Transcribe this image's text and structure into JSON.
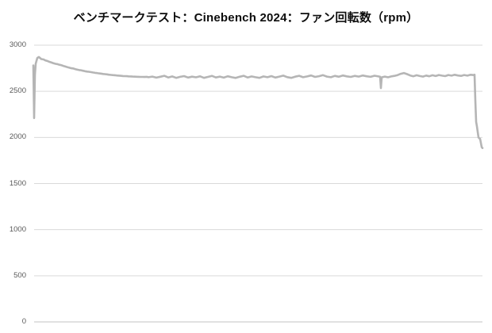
{
  "title": "ベンチマークテスト：Cinebench 2024：ファン回転数（rpm）",
  "colors": {
    "title_text": "#0d0d0d",
    "axis_text": "#595959",
    "gridline": "#d9d9d9",
    "baseline": "#c3c3c3",
    "line": "#b5b5b5",
    "background": "#ffffff"
  },
  "chart_data": {
    "type": "line",
    "title": "ベンチマークテスト：Cinebench 2024：ファン回転数（rpm）",
    "xlabel": "",
    "ylabel": "",
    "legend": "none",
    "grid": "horizontal",
    "x_axis": {
      "tick_labels_visible": false
    },
    "y_axis": {
      "min": 0,
      "max": 3000,
      "ticks": [
        3000,
        2500,
        2000,
        1500,
        1000,
        500,
        0
      ]
    },
    "series": [
      {
        "name": "ファン回転数（rpm）",
        "color": "#b5b5b5",
        "stroke_width": 2.6,
        "points": [
          [
            0,
            2780
          ],
          [
            1,
            2210
          ],
          [
            2,
            2680
          ],
          [
            3,
            2800
          ],
          [
            5,
            2862
          ],
          [
            7,
            2872
          ],
          [
            10,
            2850
          ],
          [
            13,
            2845
          ],
          [
            15,
            2836
          ],
          [
            18,
            2828
          ],
          [
            20,
            2820
          ],
          [
            23,
            2812
          ],
          [
            25,
            2806
          ],
          [
            28,
            2798
          ],
          [
            30,
            2795
          ],
          [
            33,
            2788
          ],
          [
            35,
            2784
          ],
          [
            38,
            2775
          ],
          [
            40,
            2770
          ],
          [
            43,
            2762
          ],
          [
            45,
            2758
          ],
          [
            48,
            2750
          ],
          [
            50,
            2748
          ],
          [
            53,
            2740
          ],
          [
            55,
            2736
          ],
          [
            58,
            2730
          ],
          [
            60,
            2728
          ],
          [
            63,
            2722
          ],
          [
            65,
            2718
          ],
          [
            68,
            2714
          ],
          [
            70,
            2712
          ],
          [
            73,
            2708
          ],
          [
            75,
            2704
          ],
          [
            78,
            2700
          ],
          [
            80,
            2698
          ],
          [
            83,
            2694
          ],
          [
            85,
            2692
          ],
          [
            88,
            2688
          ],
          [
            90,
            2686
          ],
          [
            93,
            2684
          ],
          [
            95,
            2680
          ],
          [
            98,
            2678
          ],
          [
            100,
            2676
          ],
          [
            103,
            2674
          ],
          [
            105,
            2672
          ],
          [
            108,
            2670
          ],
          [
            110,
            2668
          ],
          [
            113,
            2666
          ],
          [
            115,
            2665
          ],
          [
            118,
            2664
          ],
          [
            120,
            2662
          ],
          [
            123,
            2661
          ],
          [
            125,
            2660
          ],
          [
            128,
            2659
          ],
          [
            130,
            2658
          ],
          [
            133,
            2657
          ],
          [
            135,
            2656
          ],
          [
            138,
            2656
          ],
          [
            140,
            2655
          ],
          [
            143,
            2657
          ],
          [
            145,
            2653
          ],
          [
            150,
            2660
          ],
          [
            155,
            2648
          ],
          [
            160,
            2658
          ],
          [
            165,
            2668
          ],
          [
            170,
            2650
          ],
          [
            175,
            2661
          ],
          [
            180,
            2646
          ],
          [
            185,
            2657
          ],
          [
            190,
            2665
          ],
          [
            195,
            2649
          ],
          [
            200,
            2659
          ],
          [
            205,
            2652
          ],
          [
            210,
            2663
          ],
          [
            215,
            2646
          ],
          [
            220,
            2656
          ],
          [
            225,
            2667
          ],
          [
            230,
            2650
          ],
          [
            235,
            2660
          ],
          [
            240,
            2648
          ],
          [
            245,
            2663
          ],
          [
            250,
            2653
          ],
          [
            255,
            2645
          ],
          [
            260,
            2658
          ],
          [
            265,
            2668
          ],
          [
            270,
            2650
          ],
          [
            275,
            2661
          ],
          [
            280,
            2653
          ],
          [
            285,
            2646
          ],
          [
            290,
            2661
          ],
          [
            295,
            2653
          ],
          [
            300,
            2665
          ],
          [
            305,
            2649
          ],
          [
            310,
            2660
          ],
          [
            315,
            2670
          ],
          [
            320,
            2654
          ],
          [
            325,
            2646
          ],
          [
            330,
            2659
          ],
          [
            335,
            2668
          ],
          [
            340,
            2653
          ],
          [
            345,
            2661
          ],
          [
            350,
            2672
          ],
          [
            355,
            2656
          ],
          [
            360,
            2664
          ],
          [
            365,
            2675
          ],
          [
            370,
            2660
          ],
          [
            375,
            2653
          ],
          [
            380,
            2667
          ],
          [
            385,
            2658
          ],
          [
            390,
            2672
          ],
          [
            395,
            2662
          ],
          [
            400,
            2656
          ],
          [
            405,
            2667
          ],
          [
            410,
            2660
          ],
          [
            415,
            2672
          ],
          [
            420,
            2663
          ],
          [
            425,
            2657
          ],
          [
            430,
            2669
          ],
          [
            435,
            2661
          ],
          [
            437,
            2658
          ],
          [
            438,
            2535
          ],
          [
            439,
            2652
          ],
          [
            443,
            2660
          ],
          [
            447,
            2652
          ],
          [
            451,
            2661
          ],
          [
            455,
            2667
          ],
          [
            459,
            2676
          ],
          [
            463,
            2690
          ],
          [
            467,
            2698
          ],
          [
            471,
            2686
          ],
          [
            475,
            2672
          ],
          [
            479,
            2663
          ],
          [
            483,
            2674
          ],
          [
            487,
            2666
          ],
          [
            491,
            2660
          ],
          [
            495,
            2671
          ],
          [
            499,
            2663
          ],
          [
            503,
            2674
          ],
          [
            507,
            2666
          ],
          [
            511,
            2677
          ],
          [
            515,
            2670
          ],
          [
            519,
            2665
          ],
          [
            523,
            2677
          ],
          [
            527,
            2670
          ],
          [
            531,
            2679
          ],
          [
            535,
            2672
          ],
          [
            539,
            2667
          ],
          [
            543,
            2677
          ],
          [
            547,
            2670
          ],
          [
            551,
            2679
          ],
          [
            555,
            2676
          ],
          [
            556,
            2680
          ],
          [
            557,
            2400
          ],
          [
            558,
            2170
          ],
          [
            559,
            2120
          ],
          [
            560,
            2060
          ],
          [
            561,
            2000
          ],
          [
            562,
            1990
          ],
          [
            563,
            1985
          ],
          [
            564,
            1940
          ],
          [
            565,
            1895
          ],
          [
            566,
            1885
          ]
        ]
      }
    ]
  }
}
